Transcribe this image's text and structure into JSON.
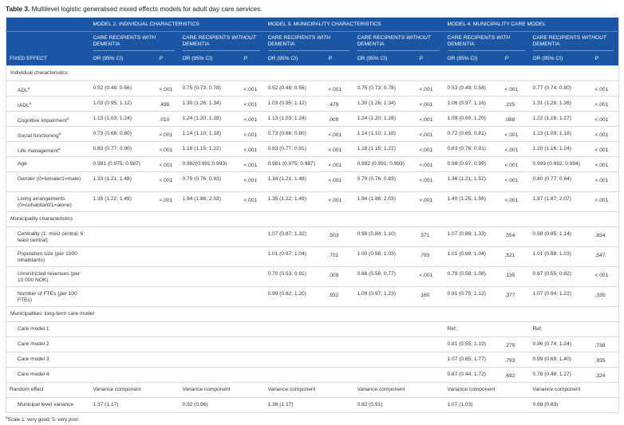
{
  "caption": {
    "label": "Table 3.",
    "text": "Multilevel logistic generalised mixed effects models for adult day care services."
  },
  "header": {
    "fixed_effect": "FIXED EFFECT",
    "models": [
      "MODEL 2. INDIVIDUAL CHARACTERISTICS",
      "MODEL 3. MUNICIPALITY CHARACTERISTICS",
      "MODEL 4. MUNICIPALITY CARE MODEL"
    ],
    "groups": [
      {
        "pre": "CARE RECIPIENTS ",
        "em": "WITH",
        "post": " DEMENTIA"
      },
      {
        "pre": "CARE RECIPIENTS ",
        "em": "WITHOUT",
        "post": " DEMENTIA"
      },
      {
        "pre": "CARE RECIPIENTS ",
        "em": "WITH",
        "post": " DEMENTIA"
      },
      {
        "pre": "CARE RECIPIENTS ",
        "em": "WITHOUT",
        "post": " DEMENTIA"
      },
      {
        "pre": "CARE RECIPIENTS ",
        "em": "WITH",
        "post": " DEMENTIA"
      },
      {
        "pre": "CARE RECIPIENTS ",
        "em": "WITHOUT",
        "post": " DEMENTIA"
      }
    ],
    "or_label": "OR (95% CI)",
    "p_label": "P"
  },
  "rows": [
    {
      "type": "section",
      "label": "Individual characteristics"
    },
    {
      "label": "ADL",
      "sup": "a",
      "cells": [
        "0.52 (0.48; 0.56)",
        "<.001",
        "0.75 (0.73; 0.78)",
        "<.001",
        "0.52 (0.48; 0.56)",
        "<.001",
        "0.75 (0.73; 0.78)",
        "<.001",
        "0.53 (0.49; 0.58)",
        "<.001",
        "0.77 (0.74; 0.80)",
        "<.001"
      ]
    },
    {
      "label": "IADL",
      "sup": "a",
      "cells": [
        "1.03 (0.95; 1.12)",
        ".495",
        "1.30 (1.26; 1.34)",
        "<.001",
        "1.03 (0.95; 1.12)",
        ".479",
        "1.30 (1.26; 1.34)",
        "<.001",
        "1.06 (0.97; 1.16)",
        ".225",
        "1.31 (1.26; 1.36)",
        "<.001"
      ]
    },
    {
      "label": "Cognitive impairment",
      "sup": "a",
      "cells": [
        "1.13 (1.03; 1.24)",
        ".010",
        "1.24 (1.20; 1.28)",
        "<.001",
        "1.13 (1.03; 1.24)",
        ".009",
        "1.24 (1.20; 1.28)",
        "<.001",
        "1.09 (0.99; 1.20)",
        ".088",
        "1.22 (1.18; 1.27)",
        "<.001"
      ]
    },
    {
      "label": "Social functioning",
      "sup": "a",
      "cells": [
        "0.73 (0.66; 0.80)",
        "<.001",
        "1.14 (1.10; 1.18)",
        "<.001",
        "0.73 (0.66; 0.80)",
        "<.001",
        "1.14 (1.10; 1.18)",
        "<.001",
        "0.72 (0.65; 0.81)",
        "<.001",
        "1.13 (1.09; 1.18)",
        "<.001"
      ]
    },
    {
      "label": "Life management",
      "sup": "a",
      "cells": [
        "0.83 (0.77; 0.90)",
        "<.001",
        "1.18 (1.15; 1.22)",
        "<.001",
        "0.83 (0.77; 0.91)",
        "<.001",
        "1.18 (1.15; 1.22)",
        "<.001",
        "0.83 (0.76; 0.91)",
        "<.001",
        "1.20 (1.16; 1.24)",
        "<.001"
      ]
    },
    {
      "label": "Age",
      "cells": [
        "0.981 (0.975; 0.987)",
        "<.001",
        "0.992(0.991;0.993)",
        "<.001",
        "0.981 (0.975; 0.987)",
        "<.001",
        "0.992 (0.991; 0.993)",
        "<.001",
        "0.98 (0.97; 0.99)",
        "<.001",
        "0.993 (0.992; 0.994)",
        "<.001"
      ]
    },
    {
      "label": "Gender (0=female/1=male)",
      "tall": true,
      "cells": [
        "1.33 (1.21; 1.48)",
        "<.001",
        "0.79 (0.76; 0.83)",
        "<.001",
        "1.34 (1.21; 1.48)",
        "<.001",
        "0.79 (0.76; 0.83)",
        "<.001",
        "1.36 (1.21; 1.52)",
        "<.001",
        "0.80 (0.77; 0.84)",
        "<.001"
      ]
    },
    {
      "label": "Living arrangements (0=cohabitant/1=alone)",
      "tall": true,
      "cells": [
        "1.35 (1.22; 1.49)",
        "<.001",
        "1.94 (1.86; 2.03)",
        "<.001",
        "1.35 (1.22; 1.49)",
        "<.001",
        "1.94 (1.86; 2.03)",
        "<.001",
        "1.40 (1.25; 1.56)",
        "<.001",
        "1.97 (1.87; 2.07)",
        "<.001"
      ]
    },
    {
      "type": "section",
      "label": "Municipality characteristics"
    },
    {
      "label": "Centrality (1: most central; 6: least central)",
      "tall": true,
      "cells": [
        "",
        "",
        "",
        "",
        "1.07 (0.87; 1.32)",
        ".503",
        "0.96 (0.84; 1.10)",
        ".571",
        "1.07 (0.86; 1.33)",
        ".554",
        "0.98 (0.85; 1.14)",
        ".834"
      ]
    },
    {
      "label": "Population size (per 1000 inhabitants)",
      "tall": true,
      "cells": [
        "",
        "",
        "",
        "",
        "1.01 (0.97; 1.04)",
        ".701",
        "1.00 (0.98; 1.03)",
        ".793",
        "1.01 (0.98; 1.04)",
        ".521",
        "1.01 (0.98; 1.03)",
        ".547"
      ]
    },
    {
      "label": "Unrestricted revenues (per 10 000 NOK)",
      "tall": true,
      "cells": [
        "",
        "",
        "",
        "",
        "0.70 (0.53; 0.91)",
        ".009",
        "0.66 (0.56; 0.77)",
        "<.001",
        "0.79 (0.58; 1.08)",
        ".135",
        "0.67 (0.55; 0.82)",
        "<.001"
      ]
    },
    {
      "label": "Number of FTEs (per 100 FTEs)",
      "tall": true,
      "cells": [
        "",
        "",
        "",
        "",
        "0.99 (0.82; 1.20)",
        ".932",
        "1.09 (0.97; 1.23)",
        ".160",
        "0.91 (0.75; 1.12)",
        ".377",
        "1.07 (0.94; 1.22)",
        ".335"
      ]
    },
    {
      "type": "section",
      "label": "Municipalities’ long-term care model"
    },
    {
      "label": "Care model 1",
      "cells": [
        "",
        "",
        "",
        "",
        "",
        "",
        "",
        "",
        "Ref.",
        "",
        "Ref.",
        ""
      ]
    },
    {
      "label": "Care model 2",
      "cells": [
        "",
        "",
        "",
        "",
        "",
        "",
        "",
        "",
        "0.81 (0.55; 1.19)",
        ".279",
        "0.96 (0.74; 1.24)",
        ".738"
      ]
    },
    {
      "label": "Care model 3",
      "cells": [
        "",
        "",
        "",
        "",
        "",
        "",
        "",
        "",
        "1.07 (0.65; 1.77)",
        ".793",
        "0.99 (0.69; 1.40)",
        ".935"
      ]
    },
    {
      "label": "Care model 4",
      "cells": [
        "",
        "",
        "",
        "",
        "",
        "",
        "",
        "",
        "0.87 (0.44; 1.72)",
        ".692",
        "0.78 (0.48; 1.27)",
        ".324"
      ]
    },
    {
      "type": "random",
      "label": "Random effect",
      "spans": [
        "Variance component",
        "Variance component",
        "Variance component",
        "Variance component",
        "Variance component",
        "Variance component"
      ]
    },
    {
      "type": "randomval",
      "label": "Municipal level variance",
      "spans": [
        "1.37 (1.17)",
        "0.92 (0.96)",
        "1.38 (1.17)",
        "0.82 (0.91)",
        "1.07 (1.03)",
        "0.68 (0.83)"
      ]
    }
  ],
  "footnote": {
    "sup": "a",
    "text": "Scale 1: very good; 5: very poor."
  }
}
